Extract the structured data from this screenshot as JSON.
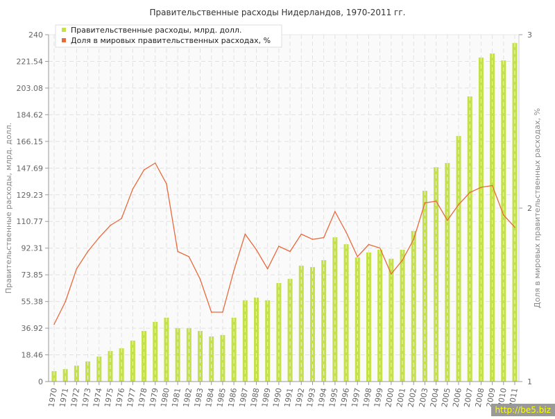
{
  "chart_data": {
    "type": "bar+line",
    "title": "Правительственные расходы Нидерландов, 1970-2011 гг.",
    "xlabel": "",
    "ylabel": "Правительственные расходы, млрд. долл.",
    "y2label": "Доля в мировых правительственных расходах, %",
    "ylim": [
      0,
      240
    ],
    "y2lim": [
      1,
      3
    ],
    "yticks": [
      "0",
      "18.46",
      "36.92",
      "55.38",
      "73.85",
      "92.31",
      "110.77",
      "129.23",
      "147.69",
      "166.15",
      "184.62",
      "203.08",
      "221.54",
      "240"
    ],
    "y2ticks": [
      "1",
      "2",
      "3"
    ],
    "grid": true,
    "legend": "top-left",
    "categories": [
      "1970",
      "1971",
      "1972",
      "1973",
      "1974",
      "1975",
      "1976",
      "1977",
      "1978",
      "1979",
      "1980",
      "1981",
      "1982",
      "1983",
      "1984",
      "1985",
      "1986",
      "1987",
      "1988",
      "1989",
      "1990",
      "1991",
      "1992",
      "1993",
      "1994",
      "1995",
      "1996",
      "1997",
      "1998",
      "1999",
      "2000",
      "2001",
      "2002",
      "2003",
      "2004",
      "2005",
      "2006",
      "2007",
      "2008",
      "2009",
      "2010",
      "2011"
    ],
    "series": [
      {
        "name": "Правительственные расходы, млрд. долл.",
        "type": "bar",
        "axis": "left",
        "color": "#c4e04a",
        "values": [
          7.2,
          8.6,
          11.0,
          13.9,
          17.3,
          21.1,
          23.0,
          28.3,
          35.0,
          41.3,
          44.2,
          37.0,
          37.0,
          35.0,
          31.2,
          32.2,
          44.2,
          56.2,
          58.1,
          56.2,
          68.2,
          71.0,
          80.2,
          79.2,
          84.0,
          99.8,
          95.0,
          85.9,
          89.3,
          91.2,
          85.0,
          91.2,
          104.2,
          132.0,
          148.3,
          151.2,
          169.9,
          197.3,
          224.2,
          227.0,
          222.2,
          234.2
        ]
      },
      {
        "name": "Доля в мировых правительственных расходах, %",
        "type": "line",
        "axis": "right",
        "color": "#e8693a",
        "values": [
          1.33,
          1.46,
          1.65,
          1.75,
          1.83,
          1.9,
          1.94,
          2.11,
          2.22,
          2.26,
          2.14,
          1.75,
          1.72,
          1.59,
          1.4,
          1.4,
          1.64,
          1.85,
          1.76,
          1.65,
          1.78,
          1.75,
          1.85,
          1.82,
          1.83,
          1.98,
          1.86,
          1.72,
          1.79,
          1.77,
          1.62,
          1.7,
          1.82,
          2.03,
          2.04,
          1.93,
          2.02,
          2.09,
          2.12,
          2.13,
          1.96,
          1.89
        ]
      }
    ]
  },
  "watermark": "http://be5.biz"
}
